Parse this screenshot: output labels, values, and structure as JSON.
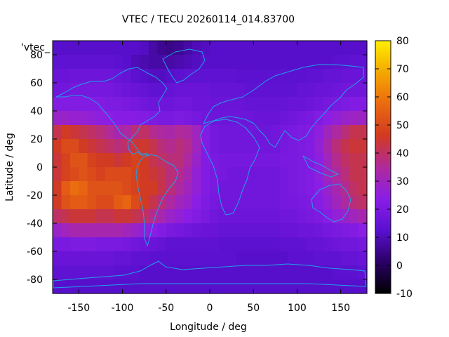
{
  "chart_data": {
    "type": "heatmap",
    "title": "VTEC / TECU 20260114_014.83700",
    "xlabel": "Longitude / deg",
    "ylabel": "Latitude / deg",
    "series_label": "'vtec_",
    "xlim": [
      -180,
      180
    ],
    "ylim": [
      -90,
      90
    ],
    "zlim": [
      -10,
      80
    ],
    "x_ticks": [
      -150,
      -100,
      -50,
      0,
      50,
      100,
      150
    ],
    "y_ticks": [
      -80,
      -60,
      -40,
      -20,
      0,
      20,
      40,
      60,
      80
    ],
    "colorbar_ticks": [
      -10,
      0,
      10,
      20,
      30,
      40,
      50,
      60,
      70,
      80
    ],
    "grid": false,
    "colormap": "gnuplot-pm3d",
    "colormap_stops": [
      "#000000",
      "#2a0066",
      "#5a10d0",
      "#8a1ee6",
      "#b02a9a",
      "#d23a20",
      "#ea6a10",
      "#f4a800",
      "#ffee00"
    ],
    "coastline_color": "#1fa0e6",
    "value_grid_note": "Estimated TEC values (TECU) on a 10-degree grid; rows from +85 to -85 latitude, columns from -175 to +175 longitude.",
    "grid_lat": [
      85,
      75,
      65,
      55,
      45,
      35,
      25,
      15,
      5,
      -5,
      -15,
      -25,
      -35,
      -45,
      -55,
      -65,
      -75,
      -85
    ],
    "grid_lon": [
      -175,
      -165,
      -155,
      -145,
      -135,
      -125,
      -115,
      -105,
      -95,
      -85,
      -75,
      -65,
      -55,
      -45,
      -35,
      -25,
      -15,
      -5,
      5,
      15,
      25,
      35,
      45,
      55,
      65,
      75,
      85,
      95,
      105,
      115,
      125,
      135,
      145,
      155,
      165,
      175
    ],
    "values": [
      [
        12,
        12,
        12,
        12,
        12,
        12,
        12,
        12,
        12,
        12,
        11,
        8,
        6,
        5,
        6,
        8,
        10,
        11,
        12,
        12,
        12,
        12,
        12,
        12,
        12,
        12,
        12,
        12,
        12,
        12,
        12,
        12,
        12,
        12,
        12,
        12
      ],
      [
        14,
        14,
        14,
        14,
        14,
        14,
        14,
        13,
        12,
        10,
        9,
        8,
        8,
        8,
        9,
        10,
        11,
        12,
        12,
        12,
        12,
        12,
        12,
        12,
        12,
        12,
        12,
        12,
        12,
        12,
        12,
        12,
        13,
        13,
        14,
        14
      ],
      [
        16,
        16,
        17,
        17,
        17,
        17,
        17,
        16,
        15,
        13,
        12,
        11,
        11,
        12,
        13,
        14,
        14,
        14,
        14,
        14,
        14,
        13,
        13,
        13,
        13,
        13,
        13,
        13,
        13,
        14,
        14,
        15,
        15,
        16,
        16,
        16
      ],
      [
        18,
        18,
        19,
        19,
        19,
        19,
        19,
        18,
        17,
        16,
        15,
        14,
        14,
        15,
        16,
        16,
        16,
        16,
        15,
        15,
        15,
        15,
        14,
        14,
        14,
        14,
        14,
        14,
        15,
        15,
        16,
        16,
        17,
        18,
        18,
        18
      ],
      [
        22,
        22,
        22,
        22,
        22,
        22,
        21,
        21,
        20,
        19,
        18,
        17,
        17,
        17,
        18,
        18,
        17,
        17,
        16,
        16,
        16,
        16,
        15,
        15,
        15,
        15,
        15,
        16,
        16,
        17,
        18,
        19,
        20,
        21,
        22,
        22
      ],
      [
        28,
        28,
        27,
        27,
        26,
        25,
        24,
        23,
        23,
        23,
        22,
        21,
        20,
        20,
        21,
        20,
        19,
        18,
        17,
        17,
        17,
        17,
        17,
        16,
        16,
        16,
        17,
        18,
        19,
        20,
        22,
        24,
        26,
        28,
        29,
        29
      ],
      [
        42,
        46,
        44,
        42,
        40,
        38,
        35,
        32,
        34,
        38,
        40,
        36,
        34,
        33,
        35,
        34,
        30,
        22,
        19,
        18,
        18,
        18,
        18,
        17,
        17,
        18,
        19,
        20,
        21,
        22,
        25,
        30,
        34,
        38,
        42,
        42
      ],
      [
        46,
        50,
        50,
        46,
        44,
        42,
        40,
        38,
        40,
        44,
        45,
        42,
        38,
        36,
        38,
        36,
        30,
        22,
        19,
        18,
        18,
        18,
        18,
        18,
        18,
        18,
        19,
        20,
        21,
        22,
        26,
        32,
        38,
        42,
        44,
        44
      ],
      [
        44,
        48,
        52,
        52,
        48,
        46,
        46,
        44,
        46,
        48,
        46,
        42,
        40,
        38,
        38,
        34,
        28,
        22,
        20,
        19,
        19,
        19,
        19,
        19,
        19,
        19,
        20,
        20,
        21,
        22,
        25,
        30,
        36,
        40,
        42,
        42
      ],
      [
        44,
        48,
        50,
        52,
        50,
        48,
        50,
        50,
        50,
        48,
        46,
        44,
        42,
        38,
        36,
        32,
        26,
        22,
        20,
        19,
        18,
        18,
        18,
        18,
        18,
        18,
        19,
        20,
        21,
        22,
        25,
        30,
        34,
        38,
        42,
        42
      ],
      [
        46,
        54,
        58,
        56,
        52,
        52,
        52,
        52,
        50,
        48,
        46,
        46,
        42,
        38,
        34,
        30,
        26,
        22,
        20,
        18,
        18,
        18,
        18,
        18,
        18,
        18,
        19,
        20,
        21,
        22,
        24,
        28,
        32,
        36,
        40,
        42
      ],
      [
        46,
        52,
        54,
        54,
        52,
        50,
        50,
        54,
        56,
        50,
        46,
        42,
        38,
        34,
        30,
        28,
        24,
        21,
        19,
        18,
        18,
        18,
        18,
        18,
        18,
        18,
        19,
        19,
        20,
        21,
        23,
        26,
        30,
        34,
        38,
        40
      ],
      [
        40,
        42,
        44,
        44,
        44,
        42,
        42,
        44,
        44,
        42,
        40,
        36,
        32,
        28,
        26,
        24,
        22,
        20,
        18,
        17,
        17,
        17,
        17,
        17,
        17,
        17,
        18,
        18,
        19,
        20,
        21,
        23,
        26,
        28,
        30,
        32
      ],
      [
        28,
        30,
        32,
        32,
        32,
        32,
        32,
        32,
        30,
        28,
        26,
        24,
        22,
        20,
        19,
        18,
        17,
        16,
        16,
        15,
        15,
        15,
        15,
        15,
        15,
        15,
        16,
        16,
        17,
        17,
        18,
        19,
        20,
        21,
        22,
        24
      ],
      [
        20,
        20,
        21,
        21,
        21,
        20,
        20,
        20,
        19,
        18,
        17,
        16,
        15,
        14,
        14,
        14,
        14,
        14,
        14,
        13,
        13,
        13,
        13,
        13,
        13,
        13,
        14,
        14,
        14,
        15,
        15,
        16,
        17,
        18,
        18,
        19
      ],
      [
        16,
        16,
        16,
        16,
        16,
        16,
        16,
        15,
        15,
        14,
        14,
        13,
        13,
        13,
        13,
        13,
        13,
        13,
        13,
        13,
        13,
        12,
        12,
        12,
        12,
        12,
        12,
        13,
        13,
        13,
        14,
        14,
        14,
        15,
        15,
        16
      ],
      [
        14,
        14,
        14,
        14,
        14,
        14,
        14,
        13,
        13,
        13,
        12,
        12,
        12,
        12,
        12,
        12,
        12,
        12,
        12,
        12,
        12,
        12,
        12,
        12,
        12,
        12,
        12,
        12,
        12,
        12,
        12,
        12,
        13,
        13,
        13,
        14
      ],
      [
        12,
        12,
        12,
        12,
        12,
        12,
        12,
        12,
        12,
        12,
        12,
        12,
        12,
        12,
        12,
        12,
        12,
        12,
        12,
        12,
        12,
        12,
        12,
        12,
        12,
        12,
        12,
        12,
        12,
        12,
        12,
        12,
        12,
        12,
        12,
        12
      ]
    ]
  }
}
